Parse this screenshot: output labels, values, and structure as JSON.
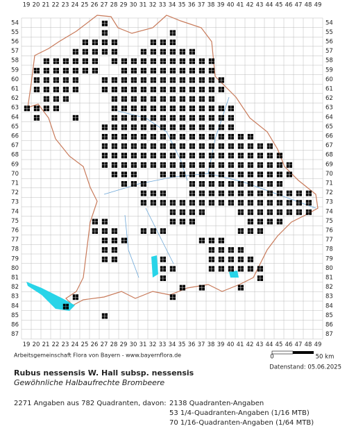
{
  "map": {
    "columns": [
      19,
      20,
      21,
      22,
      23,
      24,
      25,
      26,
      27,
      28,
      29,
      30,
      31,
      32,
      33,
      34,
      35,
      36,
      37,
      38,
      39,
      40,
      41,
      42,
      43,
      44,
      45,
      46,
      47,
      48,
      49
    ],
    "rows": [
      54,
      55,
      56,
      57,
      58,
      59,
      60,
      61,
      62,
      63,
      64,
      65,
      66,
      67,
      68,
      69,
      70,
      71,
      72,
      73,
      74,
      75,
      76,
      77,
      78,
      79,
      80,
      81,
      82,
      83,
      84,
      85,
      86,
      87
    ],
    "cells": [
      [
        54,
        27,
        27
      ],
      [
        55,
        27,
        27
      ],
      [
        55,
        34,
        34
      ],
      [
        56,
        25,
        28
      ],
      [
        56,
        32,
        34
      ],
      [
        57,
        24,
        28
      ],
      [
        57,
        31,
        36
      ],
      [
        58,
        21,
        26
      ],
      [
        58,
        28,
        30
      ],
      [
        58,
        31,
        38
      ],
      [
        59,
        20,
        26
      ],
      [
        59,
        29,
        38
      ],
      [
        60,
        20,
        24
      ],
      [
        60,
        27,
        39
      ],
      [
        61,
        20,
        24
      ],
      [
        61,
        27,
        39
      ],
      [
        62,
        21,
        23
      ],
      [
        62,
        28,
        38
      ],
      [
        63,
        19,
        22
      ],
      [
        63,
        28,
        40
      ],
      [
        64,
        20,
        20
      ],
      [
        64,
        24,
        24
      ],
      [
        64,
        28,
        40
      ],
      [
        65,
        27,
        40
      ],
      [
        66,
        27,
        42
      ],
      [
        67,
        27,
        44
      ],
      [
        68,
        27,
        45
      ],
      [
        69,
        27,
        46
      ],
      [
        70,
        28,
        30
      ],
      [
        70,
        33,
        46
      ],
      [
        71,
        29,
        31
      ],
      [
        71,
        36,
        45
      ],
      [
        72,
        31,
        33
      ],
      [
        72,
        36,
        48
      ],
      [
        73,
        31,
        34
      ],
      [
        73,
        35,
        48
      ],
      [
        74,
        34,
        37
      ],
      [
        74,
        41,
        48
      ],
      [
        75,
        26,
        27
      ],
      [
        75,
        34,
        36
      ],
      [
        75,
        42,
        45
      ],
      [
        76,
        26,
        28
      ],
      [
        76,
        31,
        33
      ],
      [
        76,
        41,
        43
      ],
      [
        77,
        27,
        29
      ],
      [
        77,
        37,
        39
      ],
      [
        78,
        27,
        28
      ],
      [
        78,
        38,
        41
      ],
      [
        79,
        27,
        28
      ],
      [
        79,
        33,
        33
      ],
      [
        79,
        38,
        42
      ],
      [
        80,
        33,
        34
      ],
      [
        80,
        38,
        43
      ],
      [
        81,
        33,
        33
      ],
      [
        81,
        43,
        43
      ],
      [
        82,
        35,
        35
      ],
      [
        82,
        37,
        37
      ],
      [
        82,
        41,
        41
      ],
      [
        83,
        24,
        24
      ],
      [
        83,
        34,
        34
      ],
      [
        84,
        23,
        23
      ],
      [
        85,
        27,
        27
      ]
    ]
  },
  "credit": "Arbeitsgemeinschaft Flora von Bayern - www.bayernflora.de",
  "scale": {
    "start": "0",
    "end": "50 km"
  },
  "date": "Datenstand: 05.06.2025",
  "title": "Rubus nessensis W. Hall subsp. nessensis",
  "subtitle": "Gewöhnliche Halbaufrechte Brombeere",
  "summary": "2271 Angaben aus 782 Quadranten, davon:",
  "counts": [
    "2138 Quadranten-Angaben",
    "53 1/4-Quadranten-Angaben (1/16 MTB)",
    "70 1/16-Quadranten-Angaben (1/64 MTB)"
  ]
}
